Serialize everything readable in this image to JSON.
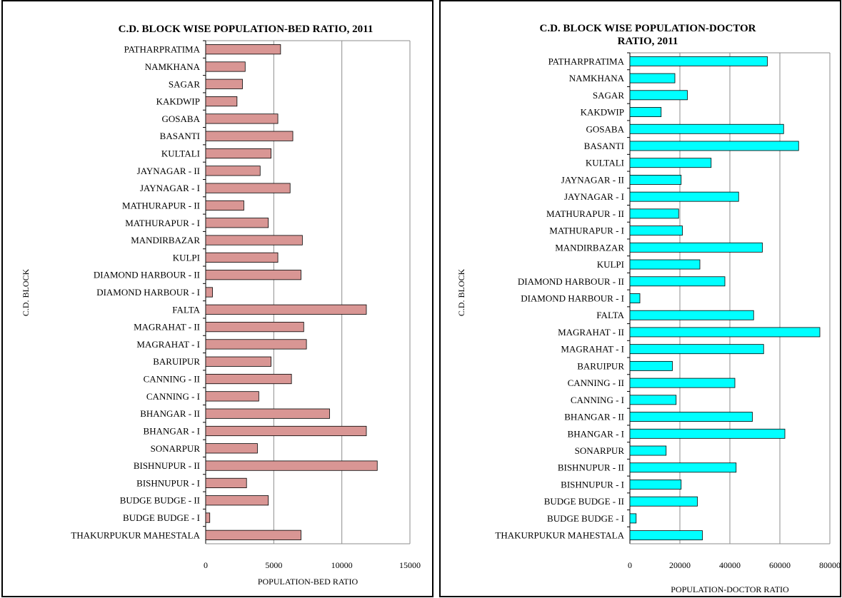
{
  "chart_data": [
    {
      "type": "bar",
      "orientation": "horizontal",
      "title": "C.D. BLOCK WISE POPULATION-BED RATIO, 2011",
      "xlabel": "POPULATION-BED RATIO",
      "ylabel": "C.D. BLOCK",
      "xlim": [
        0,
        15000
      ],
      "xticks": [
        "0",
        "5000",
        "10000",
        "15000"
      ],
      "grid": true,
      "legend": "none",
      "bar_color": "#d99694",
      "categories": [
        "PATHARPRATIMA",
        "NAMKHANA",
        "SAGAR",
        "KAKDWIP",
        "GOSABA",
        "BASANTI",
        "KULTALI",
        "JAYNAGAR - II",
        "JAYNAGAR - I",
        "MATHURAPUR - II",
        "MATHURAPUR - I",
        "MANDIRBAZAR",
        "KULPI",
        "DIAMOND HARBOUR - II",
        "DIAMOND HARBOUR - I",
        "FALTA",
        "MAGRAHAT - II",
        "MAGRAHAT - I",
        "BARUIPUR",
        "CANNING - II",
        "CANNING - I",
        "BHANGAR - II",
        "BHANGAR - I",
        "SONARPUR",
        "BISHNUPUR - II",
        "BISHNUPUR - I",
        "BUDGE BUDGE - II",
        "BUDGE BUDGE - I",
        "THAKURPUKUR MAHESTALA"
      ],
      "values": [
        5500,
        2900,
        2700,
        2300,
        5300,
        6400,
        4800,
        4000,
        6200,
        2800,
        4600,
        7100,
        5300,
        7000,
        500,
        11800,
        7200,
        7400,
        4800,
        6300,
        3900,
        9100,
        11800,
        3800,
        12600,
        3000,
        4600,
        300,
        7000
      ]
    },
    {
      "type": "bar",
      "orientation": "horizontal",
      "title": "C.D. BLOCK WISE POPULATION-DOCTOR RATIO, 2011",
      "title_lines": [
        "C.D. BLOCK WISE POPULATION-DOCTOR",
        "RATIO, 2011"
      ],
      "xlabel": "POPULATION-DOCTOR RATIO",
      "ylabel": "C.D. BLOCK",
      "xlim": [
        0,
        80000
      ],
      "xticks": [
        "0",
        "20000",
        "40000",
        "60000",
        "80000"
      ],
      "grid": true,
      "legend": "none",
      "bar_color": "#00ffff",
      "categories": [
        "PATHARPRATIMA",
        "NAMKHANA",
        "SAGAR",
        "KAKDWIP",
        "GOSABA",
        "BASANTI",
        "KULTALI",
        "JAYNAGAR - II",
        "JAYNAGAR - I",
        "MATHURAPUR - II",
        "MATHURAPUR - I",
        "MANDIRBAZAR",
        "KULPI",
        "DIAMOND HARBOUR - II",
        "DIAMOND HARBOUR - I",
        "FALTA",
        "MAGRAHAT - II",
        "MAGRAHAT - I",
        "BARUIPUR",
        "CANNING - II",
        "CANNING - I",
        "BHANGAR - II",
        "BHANGAR - I",
        "SONARPUR",
        "BISHNUPUR - II",
        "BISHNUPUR - I",
        "BUDGE BUDGE - II",
        "BUDGE BUDGE - I",
        "THAKURPUKUR MAHESTALA"
      ],
      "values": [
        55000,
        18000,
        23000,
        12500,
        61500,
        67500,
        32500,
        20500,
        43500,
        19500,
        21000,
        53000,
        28000,
        38000,
        4000,
        49500,
        76000,
        53500,
        17000,
        42000,
        18500,
        49000,
        62000,
        14500,
        42500,
        20500,
        27000,
        2500,
        29000
      ]
    }
  ]
}
